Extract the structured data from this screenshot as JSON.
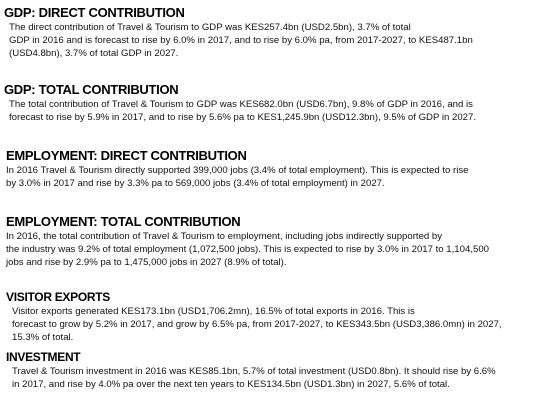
{
  "sections": [
    {
      "heading": "GDP: DIRECT CONTRIBUTION",
      "lines": [
        "The direct contribution of Travel & Tourism to GDP was KES257.4bn (USD2.5bn), 3.7% of total",
        "GDP in 2016 and is forecast to rise by 6.0% in 2017, and to rise by 6.0% pa, from 2017-2027, to KES487.1bn",
        "(USD4.8bn), 3.7% of total GDP in 2027."
      ]
    },
    {
      "heading": "GDP: TOTAL CONTRIBUTION",
      "lines": [
        "The total contribution of Travel & Tourism to GDP was KES682.0bn (USD6.7bn), 9.8% of GDP in 2016, and is",
        "forecast to rise by 5.9% in 2017, and to rise by 5.6% pa to KES1,245.9bn (USD12.3bn), 9.5% of GDP in 2027."
      ]
    },
    {
      "heading": "EMPLOYMENT: DIRECT CONTRIBUTION",
      "lines": [
        "In 2016 Travel & Tourism directly supported 399,000 jobs  (3.4% of total employment).  This is expected to rise",
        "by 3.0% in 2017 and rise by 3.3% pa to 569,000 jobs (3.4% of total employment) in 2027."
      ]
    },
    {
      "heading": "EMPLOYMENT: TOTAL CONTRIBUTION",
      "lines": [
        "In 2016, the total contribution of Travel & Tourism to employment, including jobs indirectly supported by",
        "the industry was 9.2% of total employment (1,072,500 jobs). This is expected to rise by 3.0% in 2017 to 1,104,500",
        "jobs and rise by 2.9% pa to 1,475,000 jobs in 2027 (8.9% of total)."
      ]
    },
    {
      "heading": "VISITOR EXPORTS",
      "lines": [
        "Visitor exports generated KES173.1bn (USD1,706.2mn), 16.5% of total exports in 2016.  This is",
        "forecast to grow by 5.2% in 2017, and grow by 6.5% pa, from 2017-2027, to KES343.5bn (USD3,386.0mn) in 2027,",
        "15.3% of total."
      ]
    },
    {
      "heading": "INVESTMENT",
      "lines": [
        "Travel & Tourism investment in 2016 was KES85.1bn, 5.7% of total investment (USD0.8bn).  It should rise by 6.6%",
        "in 2017, and rise by 4.0% pa over the next ten years to KES134.5bn (USD1.3bn) in 2027, 5.6% of total."
      ]
    }
  ]
}
